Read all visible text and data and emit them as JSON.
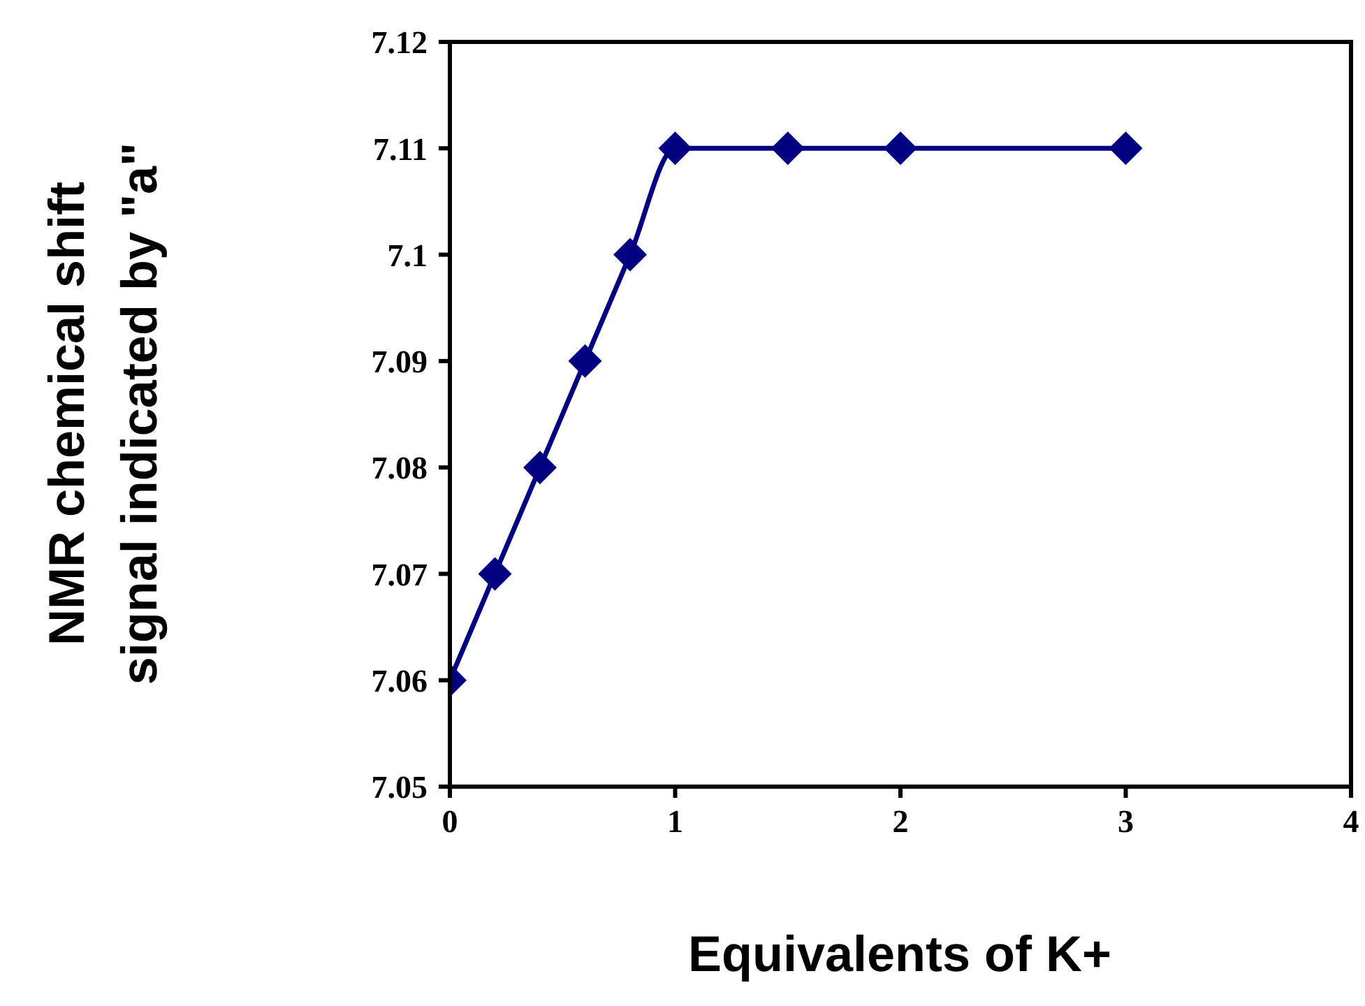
{
  "chart_data": {
    "type": "line",
    "xlabel": "Equivalents of K+",
    "ylabel": "NMR chemical shift\nsignal indicated by \"a\"",
    "x": [
      0,
      0.2,
      0.4,
      0.6,
      0.8,
      1,
      1.5,
      2,
      3
    ],
    "series": [
      {
        "color": "#000080",
        "values": [
          7.06,
          7.07,
          7.08,
          7.09,
          7.1,
          7.11,
          7.11,
          7.11,
          7.11
        ]
      }
    ],
    "xlim": [
      0,
      4
    ],
    "xticks": [
      0,
      1,
      2,
      3,
      4
    ],
    "ylim": [
      7.05,
      7.12
    ],
    "yticks": [
      7.05,
      7.06,
      7.07,
      7.08,
      7.09,
      {
        "value": 7.1,
        "label": "7.1"
      },
      7.11,
      7.12
    ],
    "marker": "diamond",
    "line_style": "solid"
  }
}
